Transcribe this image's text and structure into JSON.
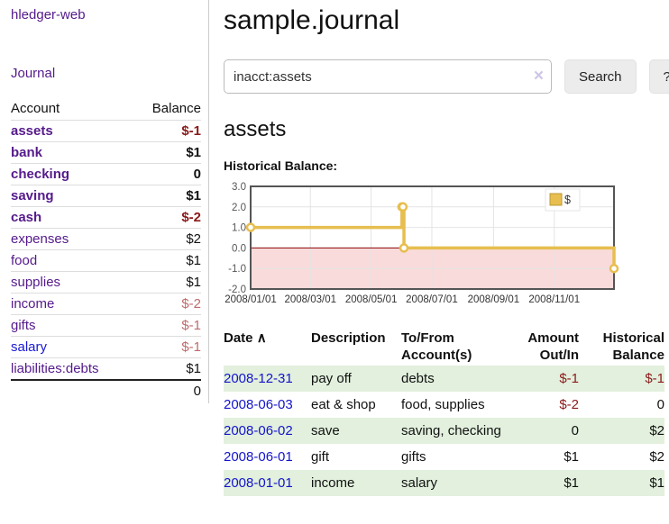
{
  "app": {
    "title": "hledger-web"
  },
  "sidebar": {
    "journal_label": "Journal",
    "accounts_table": {
      "headers": [
        "Account",
        "Balance"
      ],
      "rows": [
        {
          "name": "assets",
          "depth": 1,
          "balance": "$-1",
          "bold": true,
          "negative": true,
          "blue": false
        },
        {
          "name": "bank",
          "depth": 2,
          "balance": "$1",
          "bold": true,
          "negative": false,
          "blue": false
        },
        {
          "name": "checking",
          "depth": 3,
          "balance": "0",
          "bold": true,
          "negative": false,
          "blue": false
        },
        {
          "name": "saving",
          "depth": 3,
          "balance": "$1",
          "bold": true,
          "negative": false,
          "blue": false
        },
        {
          "name": "cash",
          "depth": 2,
          "balance": "$-2",
          "bold": true,
          "negative": true,
          "blue": false
        },
        {
          "name": "expenses",
          "depth": 1,
          "balance": "$2",
          "bold": false,
          "negative": false,
          "blue": false
        },
        {
          "name": "food",
          "depth": 2,
          "balance": "$1",
          "bold": false,
          "negative": false,
          "blue": false
        },
        {
          "name": "supplies",
          "depth": 2,
          "balance": "$1",
          "bold": false,
          "negative": false,
          "blue": false
        },
        {
          "name": "income",
          "depth": 1,
          "balance": "$-2",
          "bold": false,
          "negative": true,
          "blue": false
        },
        {
          "name": "gifts",
          "depth": 2,
          "balance": "$-1",
          "bold": false,
          "negative": true,
          "blue": false
        },
        {
          "name": "salary",
          "depth": 2,
          "balance": "$-1",
          "bold": false,
          "negative": true,
          "blue": true
        },
        {
          "name": "liabilities:debts",
          "depth": 1,
          "balance": "$1",
          "bold": false,
          "negative": false,
          "blue": false
        }
      ],
      "total": "0"
    }
  },
  "main": {
    "title": "sample.journal",
    "search": {
      "value": "inacct:assets",
      "clear_icon": "×",
      "button_label": "Search",
      "help_label": "?"
    },
    "account_heading": "assets",
    "chart_label": "Historical Balance:"
  },
  "chart_data": {
    "type": "line",
    "title": "Historical Balance",
    "step": true,
    "series_name": "$",
    "series_color": "#E7BE4F",
    "legend": [
      {
        "label": "$",
        "color": "#E8BE50"
      }
    ],
    "ylim": [
      -2,
      3
    ],
    "y_ticks": [
      3.0,
      2.0,
      1.0,
      0.0,
      -1.0,
      -2.0
    ],
    "x_domain_days": [
      0,
      365
    ],
    "x_ticks": [
      {
        "label": "2008/01/01",
        "day": 0
      },
      {
        "label": "2008/03/01",
        "day": 60
      },
      {
        "label": "2008/05/01",
        "day": 121
      },
      {
        "label": "2008/07/01",
        "day": 182
      },
      {
        "label": "2008/09/01",
        "day": 244
      },
      {
        "label": "2008/11/01",
        "day": 305
      }
    ],
    "points": [
      {
        "date": "2008-01-01",
        "day": 0,
        "value": 1
      },
      {
        "date": "2008-06-01",
        "day": 152,
        "value": 2
      },
      {
        "date": "2008-06-02",
        "day": 153,
        "value": 2
      },
      {
        "date": "2008-06-03",
        "day": 154,
        "value": 0
      },
      {
        "date": "2008-12-31",
        "day": 365,
        "value": -1
      }
    ],
    "negative_region_color": "#F9DBDB",
    "zero_line_color": "#8B0000",
    "grid": true,
    "legend_position": "top-right"
  },
  "transactions": {
    "sort_indicator": "∧",
    "headers": [
      {
        "l1": "Date",
        "l2": ""
      },
      {
        "l1": "Description",
        "l2": ""
      },
      {
        "l1": "To/From",
        "l2": "Account(s)"
      },
      {
        "l1": "Amount",
        "l2": "Out/In"
      },
      {
        "l1": "Historical",
        "l2": "Balance"
      }
    ],
    "rows": [
      {
        "date": "2008-12-31",
        "description": "pay off",
        "accounts": "debts",
        "amount": "$-1",
        "balance": "$-1"
      },
      {
        "date": "2008-06-03",
        "description": "eat & shop",
        "accounts": "food, supplies",
        "amount": "$-2",
        "balance": "0"
      },
      {
        "date": "2008-06-02",
        "description": "save",
        "accounts": "saving, checking",
        "amount": "0",
        "balance": "$2"
      },
      {
        "date": "2008-06-01",
        "description": "gift",
        "accounts": "gifts",
        "amount": "$1",
        "balance": "$2"
      },
      {
        "date": "2008-01-01",
        "description": "income",
        "accounts": "salary",
        "amount": "$1",
        "balance": "$1"
      }
    ]
  }
}
